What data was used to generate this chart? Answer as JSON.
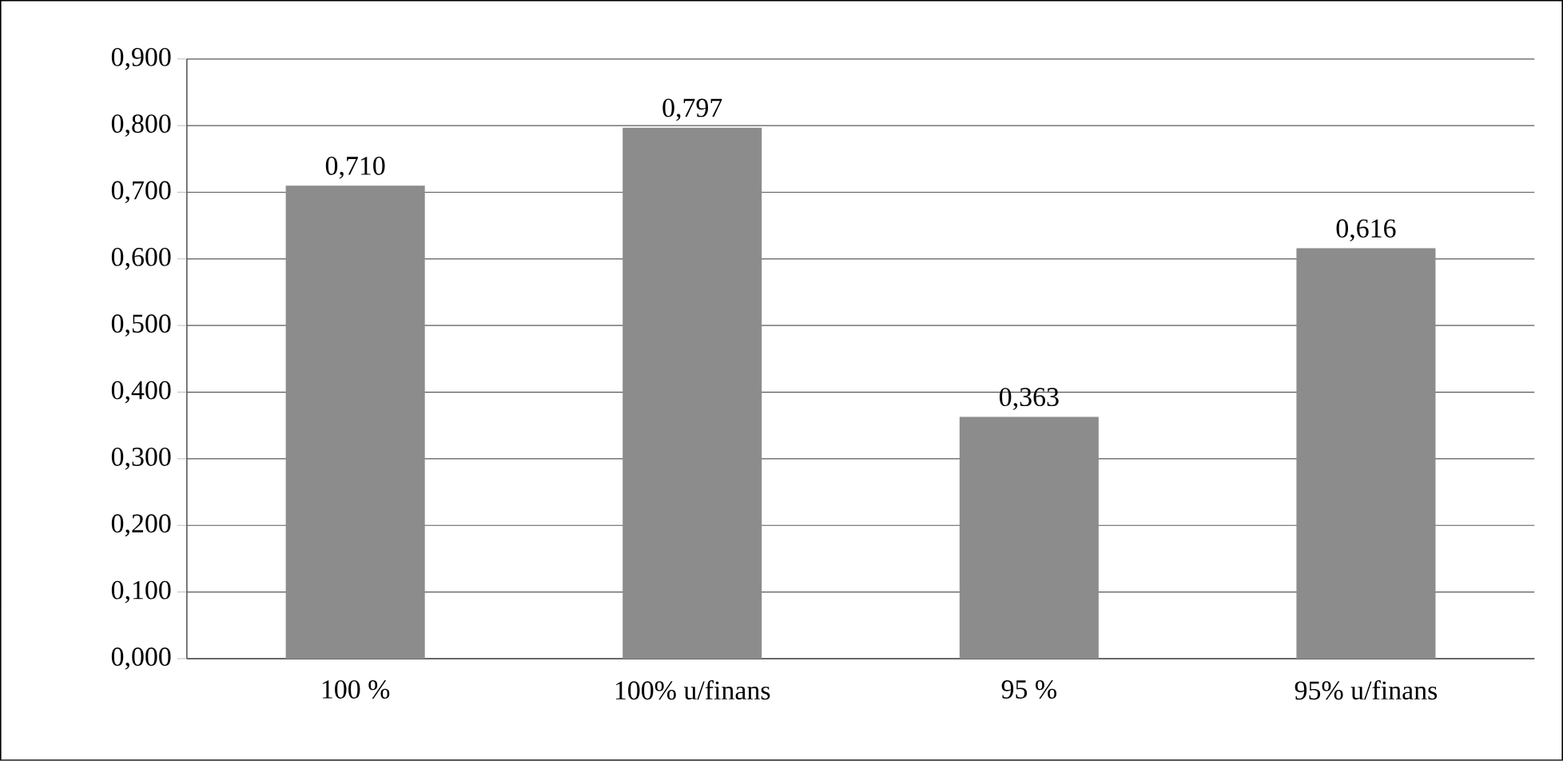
{
  "chart_data": {
    "type": "bar",
    "categories": [
      "100 %",
      "100% u/finans",
      "95 %",
      "95% u/finans"
    ],
    "values": [
      0.71,
      0.797,
      0.363,
      0.616
    ],
    "value_labels": [
      "0,710",
      "0,797",
      "0,363",
      "0,616"
    ],
    "color": "#8c8c8c",
    "ylim": [
      0,
      0.9
    ],
    "yticks": [
      {
        "value": 0,
        "label": "0,000"
      },
      {
        "value": 0.1,
        "label": "0,100"
      },
      {
        "value": 0.2,
        "label": "0,200"
      },
      {
        "value": 0.3,
        "label": "0,300"
      },
      {
        "value": 0.4,
        "label": "0,400"
      },
      {
        "value": 0.5,
        "label": "0,500"
      },
      {
        "value": 0.6,
        "label": "0,600"
      },
      {
        "value": 0.7,
        "label": "0,700"
      },
      {
        "value": 0.8,
        "label": "0,800"
      },
      {
        "value": 0.9,
        "label": "0,900"
      }
    ],
    "grid": "y",
    "legend": false
  }
}
